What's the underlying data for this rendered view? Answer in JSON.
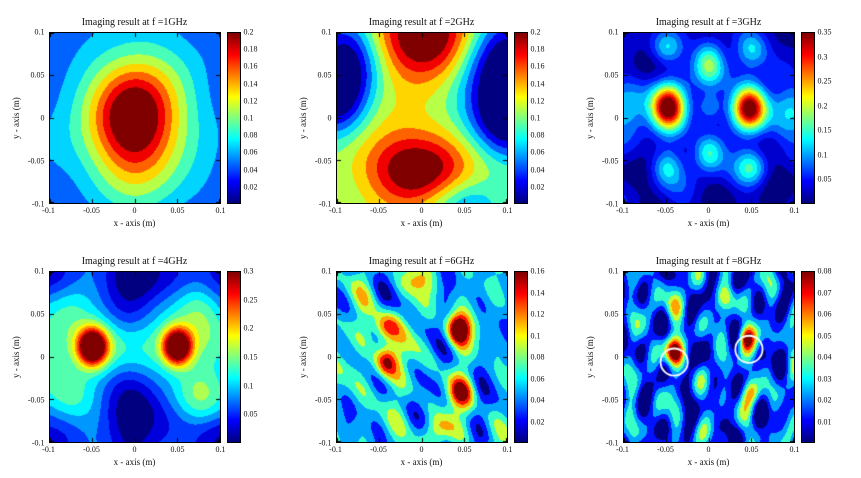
{
  "figure": {
    "background": "#ffffff",
    "annotation_color": "#ffffff",
    "colormap": "jet"
  },
  "chart_data": {
    "type": "heatmap",
    "subtype": "filled-contour",
    "colormap": "jet",
    "grid": "off",
    "xlabel": "x - axis (m)",
    "ylabel": "y - axis (m)",
    "xlim": [
      -0.1,
      0.1
    ],
    "ylim": [
      -0.1,
      0.1
    ],
    "xticks": [
      "-0.1",
      "-0.05",
      "0",
      "0.05",
      "0.1"
    ],
    "yticks": [
      "0.1",
      "0.05",
      "0",
      "-0.05",
      "-0.1"
    ],
    "panels": [
      {
        "title": "Imaging result at f =1GHz",
        "freq_ghz": 1,
        "vmax": 0.2,
        "levels": 10,
        "ctick_values": [
          0.2,
          0.18,
          0.16,
          0.14,
          0.12,
          0.1,
          0.08,
          0.06,
          0.04,
          0.02
        ],
        "ctick_labels": [
          "0.2",
          "0.18",
          "0.16",
          "0.14",
          "0.12",
          "0.1",
          "0.08",
          "0.06",
          "0.04",
          "0.02"
        ],
        "field": {
          "base": 0.0,
          "blobs": [
            [
              0,
              -0.003,
              0.036,
              0.047,
              0.135
            ],
            [
              0,
              -0.005,
              0.11,
              0.13,
              0.085
            ]
          ],
          "noise": {
            "amp": 0.006,
            "freq": 9,
            "seed": 7
          }
        },
        "annotations": []
      },
      {
        "title": "Imaging result at f =2GHz",
        "freq_ghz": 2,
        "vmax": 0.2,
        "levels": 10,
        "ctick_values": [
          0.2,
          0.18,
          0.16,
          0.14,
          0.12,
          0.1,
          0.08,
          0.06,
          0.04,
          0.02
        ],
        "ctick_labels": [
          "0.2",
          "0.18",
          "0.16",
          "0.14",
          "0.12",
          "0.1",
          "0.08",
          "0.06",
          "0.04",
          "0.02"
        ],
        "field": {
          "base": 0.1,
          "blobs": [
            [
              0.005,
              0.095,
              0.045,
              0.035,
              0.12
            ],
            [
              -0.012,
              -0.06,
              0.045,
              0.032,
              0.11
            ],
            [
              -0.088,
              0.075,
              0.028,
              0.035,
              -0.1
            ],
            [
              -0.1,
              0.02,
              0.025,
              0.03,
              -0.08
            ],
            [
              0.095,
              0.06,
              0.035,
              0.045,
              -0.115
            ],
            [
              0.1,
              -0.005,
              0.03,
              0.03,
              -0.08
            ],
            [
              0.05,
              -0.1,
              0.03,
              0.022,
              -0.05
            ]
          ],
          "noise": {
            "amp": 0.01,
            "freq": 9,
            "seed": 3
          }
        },
        "annotations": []
      },
      {
        "title": "Imaging result at f =3GHz",
        "freq_ghz": 3,
        "vmax": 0.35,
        "levels": 14,
        "ctick_values": [
          0.35,
          0.3,
          0.25,
          0.2,
          0.15,
          0.1,
          0.05
        ],
        "ctick_labels": [
          "0.35",
          "0.3",
          "0.25",
          "0.2",
          "0.15",
          "0.1",
          "0.05"
        ],
        "field": {
          "base": 0.03,
          "blobs": [
            [
              -0.048,
              0.012,
              0.014,
              0.018,
              0.34
            ],
            [
              0.048,
              0.012,
              0.014,
              0.018,
              0.34
            ],
            [
              0,
              0.065,
              0.013,
              0.018,
              0.16
            ],
            [
              0,
              -0.042,
              0.013,
              0.016,
              0.14
            ],
            [
              0,
              0.012,
              0.011,
              0.012,
              0.08
            ],
            [
              -0.05,
              -0.058,
              0.013,
              0.015,
              0.1
            ],
            [
              0.05,
              -0.058,
              0.013,
              0.015,
              0.1
            ],
            [
              -0.05,
              0.082,
              0.013,
              0.014,
              0.09
            ],
            [
              0.05,
              0.082,
              0.013,
              0.014,
              0.09
            ],
            [
              -0.095,
              0.01,
              0.018,
              0.025,
              0.09
            ],
            [
              0.095,
              0.01,
              0.018,
              0.025,
              0.09
            ]
          ],
          "noise": {
            "amp": 0.022,
            "freq": 15,
            "seed": 11
          }
        },
        "annotations": []
      },
      {
        "title": "Imaging result at f =4GHz",
        "freq_ghz": 4,
        "vmax": 0.3,
        "levels": 12,
        "ctick_values": [
          0.3,
          0.25,
          0.2,
          0.15,
          0.1,
          0.05
        ],
        "ctick_labels": [
          "0.3",
          "0.25",
          "0.2",
          "0.15",
          "0.1",
          "0.05"
        ],
        "field": {
          "base": 0.1,
          "blobs": [
            [
              -0.05,
              0.012,
              0.012,
              0.015,
              0.26
            ],
            [
              0.05,
              0.012,
              0.012,
              0.015,
              0.26
            ],
            [
              0,
              0.012,
              0.08,
              0.022,
              0.06
            ],
            [
              0,
              0.09,
              0.03,
              0.04,
              -0.1
            ],
            [
              0,
              -0.075,
              0.03,
              0.045,
              -0.1
            ],
            [
              -0.1,
              0.1,
              0.028,
              0.028,
              -0.07
            ],
            [
              0.1,
              0.1,
              0.028,
              0.028,
              -0.07
            ],
            [
              -0.1,
              -0.1,
              0.028,
              0.028,
              -0.07
            ],
            [
              0.1,
              -0.1,
              0.028,
              0.028,
              -0.07
            ],
            [
              -0.075,
              0.065,
              0.02,
              0.025,
              0.05
            ],
            [
              0.075,
              0.065,
              0.02,
              0.025,
              0.05
            ],
            [
              -0.075,
              -0.045,
              0.02,
              0.025,
              0.05
            ],
            [
              0.075,
              -0.045,
              0.02,
              0.025,
              0.05
            ]
          ],
          "noise": {
            "amp": 0.014,
            "freq": 13,
            "seed": 5
          }
        },
        "annotations": []
      },
      {
        "title": "Imaging result at f =6GHz",
        "freq_ghz": 6,
        "vmax": 0.16,
        "levels": 8,
        "ctick_values": [
          0.16,
          0.14,
          0.12,
          0.1,
          0.08,
          0.06,
          0.04,
          0.02
        ],
        "ctick_labels": [
          "0.16",
          "0.14",
          "0.12",
          "0.1",
          "0.08",
          "0.06",
          "0.04",
          "0.02"
        ],
        "field": {
          "base": 0.055,
          "blobs": [
            [
              0.042,
              0.032,
              0.01,
              0.013,
              0.115
            ],
            [
              -0.043,
              -0.006,
              0.01,
              0.014,
              0.1
            ],
            [
              -0.043,
              0.034,
              0.011,
              0.013,
              0.08
            ],
            [
              0.046,
              -0.042,
              0.011,
              0.013,
              0.07
            ],
            [
              0.02,
              -0.085,
              0.012,
              0.012,
              0.05
            ],
            [
              -0.01,
              0.09,
              0.012,
              0.012,
              0.04
            ]
          ],
          "noise": {
            "amp": 0.03,
            "freq": 20,
            "seed": 21
          }
        },
        "annotations": []
      },
      {
        "title": "Imaging result at f =8GHz",
        "freq_ghz": 8,
        "vmax": 0.08,
        "levels": 8,
        "ctick_values": [
          0.08,
          0.07,
          0.06,
          0.05,
          0.04,
          0.03,
          0.02,
          0.01
        ],
        "ctick_labels": [
          "0.08",
          "0.07",
          "0.06",
          "0.05",
          "0.04",
          "0.03",
          "0.02",
          "0.01"
        ],
        "field": {
          "base": 0.018,
          "blobs": [
            [
              -0.042,
              0.006,
              0.0075,
              0.011,
              0.062
            ],
            [
              0.043,
              0.022,
              0.0075,
              0.011,
              0.058
            ],
            [
              0.05,
              -0.042,
              0.008,
              0.011,
              0.028
            ],
            [
              -0.044,
              0.06,
              0.008,
              0.012,
              0.024
            ],
            [
              0.02,
              0.07,
              0.008,
              0.01,
              0.02
            ]
          ],
          "noise": {
            "amp": 0.019,
            "freq": 27,
            "seed": 33
          }
        },
        "annotations": [
          {
            "x": -0.041,
            "y": -0.006,
            "r": 0.016
          },
          {
            "x": 0.047,
            "y": 0.009,
            "r": 0.016
          }
        ]
      }
    ]
  }
}
